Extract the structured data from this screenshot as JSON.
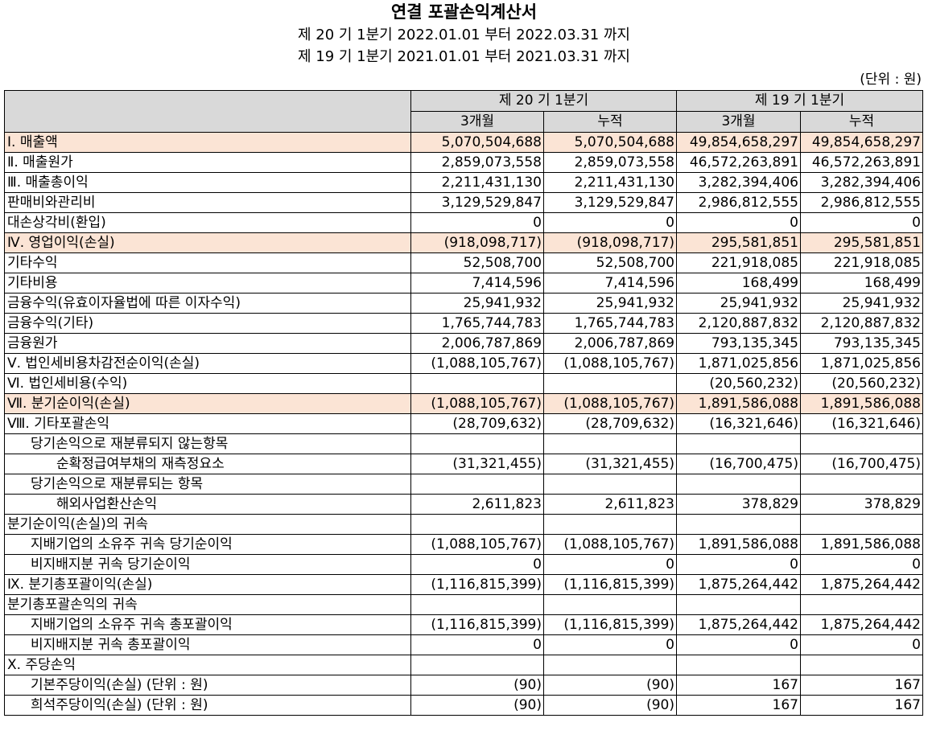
{
  "title": "연결 포괄손익계산서",
  "period_current": "제 20 기 1분기 2022.01.01 부터 2022.03.31 까지",
  "period_prior": "제 19 기 1분기 2021.01.01 부터 2021.03.31 까지",
  "unit": "(단위 : 원)",
  "header": {
    "col_group_1": "제 20 기 1분기",
    "col_group_2": "제 19 기 1분기",
    "sub_1": "3개월",
    "sub_2": "누적",
    "sub_3": "3개월",
    "sub_4": "누적"
  },
  "highlight_color": "#fbe4d5",
  "header_color": "#d9d9d9",
  "rows": [
    {
      "label": "Ⅰ. 매출액",
      "v": [
        "5,070,504,688",
        "5,070,504,688",
        "49,854,658,297",
        "49,854,658,297"
      ]
    },
    {
      "label": "Ⅱ. 매출원가",
      "v": [
        "2,859,073,558",
        "2,859,073,558",
        "46,572,263,891",
        "46,572,263,891"
      ]
    },
    {
      "label": "Ⅲ. 매출총이익",
      "v": [
        "2,211,431,130",
        "2,211,431,130",
        "3,282,394,406",
        "3,282,394,406"
      ]
    },
    {
      "label": "판매비와관리비",
      "v": [
        "3,129,529,847",
        "3,129,529,847",
        "2,986,812,555",
        "2,986,812,555"
      ]
    },
    {
      "label": "대손상각비(환입)",
      "v": [
        "0",
        "0",
        "0",
        "0"
      ]
    },
    {
      "label": "Ⅳ. 영업이익(손실)",
      "v": [
        "(918,098,717)",
        "(918,098,717)",
        "295,581,851",
        "295,581,851"
      ]
    },
    {
      "label": "기타수익",
      "v": [
        "52,508,700",
        "52,508,700",
        "221,918,085",
        "221,918,085"
      ]
    },
    {
      "label": "기타비용",
      "v": [
        "7,414,596",
        "7,414,596",
        "168,499",
        "168,499"
      ]
    },
    {
      "label": "금융수익(유효이자율법에 따른 이자수익)",
      "v": [
        "25,941,932",
        "25,941,932",
        "25,941,932",
        "25,941,932"
      ]
    },
    {
      "label": "금융수익(기타)",
      "v": [
        "1,765,744,783",
        "1,765,744,783",
        "2,120,887,832",
        "2,120,887,832"
      ]
    },
    {
      "label": "금융원가",
      "v": [
        "2,006,787,869",
        "2,006,787,869",
        "793,135,345",
        "793,135,345"
      ]
    },
    {
      "label": "Ⅴ. 법인세비용차감전순이익(손실)",
      "v": [
        "(1,088,105,767)",
        "(1,088,105,767)",
        "1,871,025,856",
        "1,871,025,856"
      ]
    },
    {
      "label": "Ⅵ. 법인세비용(수익)",
      "v": [
        "",
        "",
        "(20,560,232)",
        "(20,560,232)"
      ]
    },
    {
      "label": "Ⅶ. 분기순이익(손실)",
      "v": [
        "(1,088,105,767)",
        "(1,088,105,767)",
        "1,891,586,088",
        "1,891,586,088"
      ]
    },
    {
      "label": "Ⅷ. 기타포괄손익",
      "v": [
        "(28,709,632)",
        "(28,709,632)",
        "(16,321,646)",
        "(16,321,646)"
      ]
    },
    {
      "label": "당기손익으로 재분류되지 않는항목",
      "v": [
        "",
        "",
        "",
        ""
      ]
    },
    {
      "label": "순확정급여부채의 재측정요소",
      "v": [
        "(31,321,455)",
        "(31,321,455)",
        "(16,700,475)",
        "(16,700,475)"
      ]
    },
    {
      "label": "당기손익으로 재분류되는 항목",
      "v": [
        "",
        "",
        "",
        ""
      ]
    },
    {
      "label": "해외사업환산손익",
      "v": [
        "2,611,823",
        "2,611,823",
        "378,829",
        "378,829"
      ]
    },
    {
      "label": "분기순이익(손실)의 귀속",
      "v": [
        "",
        "",
        "",
        ""
      ]
    },
    {
      "label": "지배기업의 소유주 귀속 당기순이익",
      "v": [
        "(1,088,105,767)",
        "(1,088,105,767)",
        "1,891,586,088",
        "1,891,586,088"
      ]
    },
    {
      "label": "비지배지분 귀속 당기순이익",
      "v": [
        "0",
        "0",
        "0",
        "0"
      ]
    },
    {
      "label": "Ⅸ. 분기총포괄이익(손실)",
      "v": [
        "(1,116,815,399)",
        "(1,116,815,399)",
        "1,875,264,442",
        "1,875,264,442"
      ]
    },
    {
      "label": "분기총포괄손익의 귀속",
      "v": [
        "",
        "",
        "",
        ""
      ]
    },
    {
      "label": "지배기업의 소유주 귀속 총포괄이익",
      "v": [
        "(1,116,815,399)",
        "(1,116,815,399)",
        "1,875,264,442",
        "1,875,264,442"
      ]
    },
    {
      "label": "비지배지분 귀속 총포괄이익",
      "v": [
        "0",
        "0",
        "0",
        "0"
      ]
    },
    {
      "label": "Ⅹ. 주당손익",
      "v": [
        "",
        "",
        "",
        ""
      ]
    },
    {
      "label": "기본주당이익(손실) (단위 : 원)",
      "v": [
        "(90)",
        "(90)",
        "167",
        "167"
      ]
    },
    {
      "label": "희석주당이익(손실) (단위 : 원)",
      "v": [
        "(90)",
        "(90)",
        "167",
        "167"
      ]
    }
  ]
}
